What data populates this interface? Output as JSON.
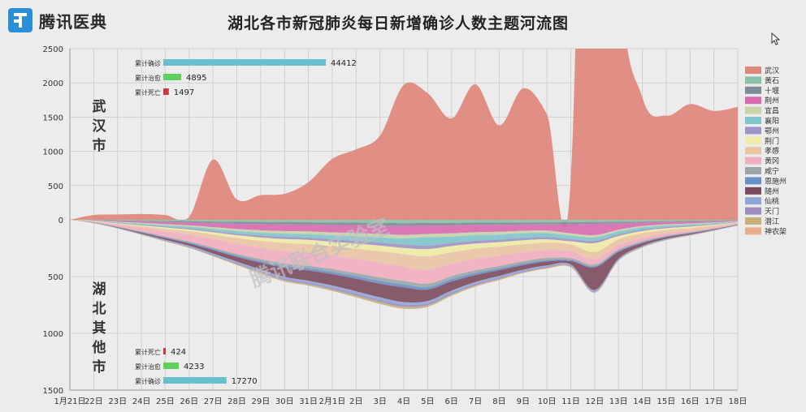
{
  "logo": {
    "text": "腾讯医典"
  },
  "title": "湖北各市新冠肺炎每日新增确诊人数主题河流图",
  "watermark": "腾讯联合实验室",
  "chart_data": {
    "type": "area",
    "subtype": "streamgraph",
    "x": [
      "1月21日",
      "22日",
      "23日",
      "24日",
      "25日",
      "26日",
      "27日",
      "28日",
      "29日",
      "30日",
      "31日",
      "2月1日",
      "2日",
      "3日",
      "4日",
      "5日",
      "6日",
      "7日",
      "8日",
      "9日",
      "10日",
      "11日",
      "12日",
      "13日",
      "14日",
      "15日",
      "16日",
      "17日",
      "18日"
    ],
    "y_ticks_top": [
      2500,
      2000,
      1500,
      1000,
      500,
      0
    ],
    "y_ticks_bottom": [
      500,
      1000,
      1500
    ],
    "ylim_top": [
      0,
      2500
    ],
    "ylim_bottom": [
      0,
      1500
    ],
    "grid": true,
    "legend_position": "right",
    "top_panel": {
      "label": "武汉市",
      "series": [
        {
          "name": "武汉",
          "color": "#e0877c",
          "values": [
            0,
            70,
            77,
            84,
            70,
            45,
            880,
            300,
            360,
            380,
            550,
            890,
            1030,
            1230,
            1970,
            1850,
            1480,
            1980,
            1380,
            1920,
            1540,
            600,
            13436,
            3910,
            1790,
            1520,
            1690,
            1590,
            1650
          ]
        }
      ],
      "stats": [
        {
          "label": "累计确诊",
          "value": 44412,
          "color": "#67c1cc"
        },
        {
          "label": "累计治愈",
          "value": 4895,
          "color": "#5cd15c"
        },
        {
          "label": "累计死亡",
          "value": 1497,
          "color": "#c9393f"
        }
      ]
    },
    "bottom_panel": {
      "label": "湖北其他市",
      "series": [
        {
          "name": "黄石",
          "color": "#88c0a7",
          "values": [
            0,
            2,
            5,
            8,
            10,
            12,
            15,
            18,
            20,
            20,
            22,
            25,
            25,
            28,
            30,
            28,
            28,
            25,
            25,
            24,
            22,
            22,
            20,
            18,
            15,
            12,
            10,
            8,
            4
          ]
        },
        {
          "name": "十堰",
          "color": "#7d8c99",
          "values": [
            0,
            2,
            5,
            8,
            10,
            12,
            15,
            18,
            18,
            20,
            20,
            22,
            22,
            25,
            25,
            22,
            22,
            20,
            20,
            18,
            18,
            18,
            15,
            15,
            10,
            8,
            8,
            6,
            3
          ]
        },
        {
          "name": "荆州",
          "color": "#d86bb0",
          "values": [
            0,
            2,
            8,
            12,
            18,
            25,
            35,
            45,
            55,
            60,
            60,
            65,
            70,
            72,
            78,
            75,
            70,
            65,
            60,
            55,
            55,
            80,
            100,
            55,
            30,
            20,
            15,
            10,
            5
          ]
        },
        {
          "name": "宜昌",
          "color": "#c9d3a8",
          "values": [
            0,
            2,
            5,
            8,
            10,
            12,
            15,
            18,
            20,
            22,
            25,
            25,
            28,
            30,
            30,
            28,
            28,
            25,
            25,
            22,
            22,
            20,
            20,
            15,
            12,
            10,
            8,
            6,
            3
          ]
        },
        {
          "name": "襄阳",
          "color": "#7fc6cc",
          "values": [
            0,
            2,
            5,
            8,
            12,
            15,
            18,
            22,
            25,
            28,
            30,
            35,
            40,
            45,
            55,
            75,
            55,
            50,
            45,
            40,
            35,
            30,
            30,
            25,
            20,
            15,
            12,
            8,
            4
          ]
        },
        {
          "name": "鄂州",
          "color": "#a093c7",
          "values": [
            0,
            2,
            4,
            6,
            8,
            10,
            12,
            15,
            18,
            20,
            20,
            22,
            25,
            28,
            30,
            30,
            28,
            25,
            22,
            22,
            20,
            20,
            20,
            15,
            12,
            10,
            8,
            6,
            3
          ]
        },
        {
          "name": "荆门",
          "color": "#f0eba6",
          "values": [
            0,
            2,
            5,
            8,
            12,
            15,
            20,
            25,
            30,
            35,
            38,
            40,
            45,
            50,
            55,
            65,
            55,
            45,
            40,
            35,
            30,
            28,
            80,
            30,
            20,
            15,
            12,
            8,
            4
          ]
        },
        {
          "name": "孝感",
          "color": "#e9c4a4",
          "values": [
            0,
            3,
            8,
            15,
            22,
            30,
            40,
            50,
            60,
            70,
            75,
            80,
            90,
            100,
            110,
            120,
            100,
            90,
            80,
            70,
            65,
            60,
            60,
            50,
            40,
            30,
            22,
            15,
            8
          ]
        },
        {
          "name": "黄冈",
          "color": "#f2aec0",
          "values": [
            0,
            5,
            15,
            30,
            45,
            60,
            75,
            90,
            100,
            110,
            115,
            120,
            125,
            130,
            125,
            120,
            110,
            100,
            90,
            80,
            70,
            60,
            50,
            40,
            30,
            20,
            15,
            10,
            5
          ]
        },
        {
          "name": "咸宁",
          "color": "#9aa6aa",
          "values": [
            0,
            2,
            4,
            6,
            8,
            10,
            12,
            15,
            18,
            20,
            22,
            25,
            28,
            30,
            32,
            30,
            28,
            25,
            22,
            20,
            18,
            16,
            14,
            12,
            10,
            8,
            6,
            4,
            2
          ]
        },
        {
          "name": "恩施州",
          "color": "#6b8fc7",
          "values": [
            0,
            1,
            2,
            4,
            6,
            8,
            10,
            12,
            15,
            18,
            20,
            20,
            22,
            25,
            25,
            22,
            20,
            18,
            16,
            14,
            12,
            10,
            10,
            8,
            6,
            5,
            4,
            3,
            2
          ]
        },
        {
          "name": "随州",
          "color": "#7c4a5e",
          "values": [
            0,
            2,
            5,
            10,
            15,
            20,
            30,
            40,
            60,
            80,
            90,
            100,
            110,
            120,
            130,
            100,
            80,
            60,
            50,
            40,
            35,
            30,
            200,
            60,
            25,
            15,
            10,
            6,
            3
          ]
        },
        {
          "name": "仙桃",
          "color": "#8ea7d6",
          "values": [
            0,
            1,
            2,
            4,
            6,
            8,
            10,
            12,
            14,
            15,
            16,
            18,
            20,
            22,
            22,
            20,
            18,
            16,
            14,
            12,
            10,
            10,
            10,
            8,
            6,
            5,
            4,
            3,
            2
          ]
        },
        {
          "name": "天门",
          "color": "#9e8ec0",
          "values": [
            0,
            1,
            2,
            3,
            5,
            6,
            8,
            10,
            12,
            14,
            15,
            16,
            18,
            20,
            20,
            18,
            16,
            14,
            12,
            10,
            10,
            8,
            8,
            6,
            5,
            4,
            3,
            2,
            1
          ]
        },
        {
          "name": "潜江",
          "color": "#c7b07a",
          "values": [
            0,
            1,
            2,
            3,
            4,
            5,
            6,
            8,
            10,
            12,
            12,
            14,
            15,
            16,
            16,
            14,
            12,
            10,
            10,
            8,
            8,
            6,
            6,
            5,
            4,
            3,
            2,
            2,
            1
          ]
        },
        {
          "name": "神农架",
          "color": "#e8b08a",
          "values": [
            0,
            0,
            0,
            0,
            0,
            0,
            0,
            0,
            0,
            0,
            0,
            0,
            0,
            0,
            0,
            0,
            0,
            0,
            0,
            0,
            0,
            0,
            0,
            0,
            0,
            0,
            0,
            0,
            0
          ]
        }
      ],
      "stats": [
        {
          "label": "累计死亡",
          "value": 424,
          "color": "#c9393f"
        },
        {
          "label": "累计治愈",
          "value": 4233,
          "color": "#5cd15c"
        },
        {
          "label": "累计确诊",
          "value": 17270,
          "color": "#67c1cc"
        }
      ]
    }
  },
  "colors": {
    "background": "#ececec",
    "grid": "#cfcfcf"
  }
}
